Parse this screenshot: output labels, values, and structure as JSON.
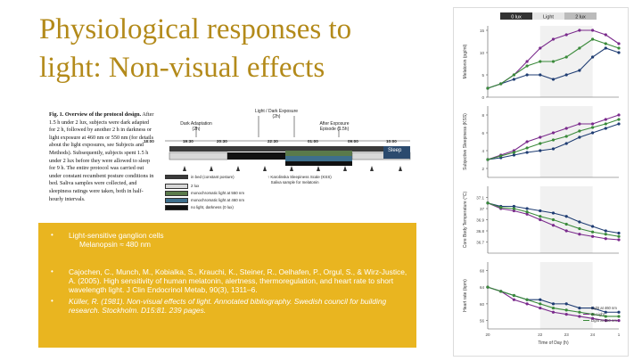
{
  "slide": {
    "title_line1": "Physiological responses to",
    "title_line2": "light: Non-visual effects"
  },
  "figure": {
    "caption_bold": "Fig. 1. Overview of the protocol design.",
    "caption_rest": "After 1.5 h under 2 lux, subjects were dark adapted for 2 h, followed by another 2 h in darkness or light exposure at 460 nm or 550 nm (for details about the light exposures, see Subjects and Methods). Subsequently, subjects spent 1.5 h under 2 lux before they were allowed to sleep for 9 h. The entire protocol was carried out under constant recumbent posture conditions in bed. Saliva samples were collected, and sleepiness ratings were taken, both in half-hourly intervals.",
    "phase_light_dark": "Light / Dark Exposure",
    "phase_light_dark_dur": "(2h)",
    "phase_dark_adapt": "Dark Adaptation",
    "phase_dark_adapt_dur": "(2h)",
    "phase_after": "After Exposure",
    "phase_after_dur": "Episode (1.5h)",
    "times": [
      "18:00",
      "19:30",
      "20:30",
      "22:30",
      "01:00",
      "09:00",
      "10:00"
    ],
    "sleep_label": "Sleep",
    "legend": [
      "in bed (constant posture)",
      "2 lux",
      "monochromatic light at 550 nm",
      "monochromatic light at 460 nm",
      "no light, darkness (0 lux)"
    ],
    "kss_note_1": "Karolinska Sleepiness Scale (KSS)",
    "kss_note_2": "Saliva sample for melatonin"
  },
  "bullets": {
    "b1_line1": "Light-sensitive ganglion cells",
    "b1_line2": "Melanopsin ≈ 480 nm",
    "ref1": "Cajochen, C., Munch, M., Kobialka, S., Krauchi, K., Steiner, R., Oelhafen, P., Orgul, S., & Wirz-Justice, A. (2005). High sensitivity of human melatonin, alertness, thermoregulation, and heart rate to short wavelength light. J Clin Endocrinol Metab, 90(3), 1311–6.",
    "ref2": "Küller, R. (1981). Non-visual effects of light. Annotated bibliography. Swedish council for building research. Stockholm. D15:81. 239 pages."
  },
  "chart_header": [
    "0 lux",
    "Light",
    "2 lux"
  ],
  "chart_data": [
    {
      "type": "line",
      "ylabel": "Melatonin (pg/ml)",
      "ylim": [
        0,
        16
      ],
      "yticks": [
        0,
        5,
        10,
        15
      ],
      "x": [
        20,
        20.5,
        21,
        21.5,
        22,
        22.5,
        23,
        23.5,
        24,
        24.5,
        25
      ],
      "series": [
        {
          "values": [
            2,
            3,
            5,
            8,
            11,
            13,
            14,
            15,
            15,
            14,
            12
          ],
          "color": "#7a2a8c"
        },
        {
          "values": [
            2,
            3,
            4,
            5,
            5,
            4,
            5,
            6,
            9,
            11,
            10
          ],
          "color": "#1f3d73"
        },
        {
          "values": [
            2,
            3,
            5,
            7,
            8,
            8,
            9,
            11,
            13,
            12,
            11
          ],
          "color": "#3a8a3a"
        }
      ]
    },
    {
      "type": "line",
      "ylabel": "Subjective Sleepiness (KSS)",
      "ylim": [
        1,
        9
      ],
      "yticks": [
        2,
        4,
        6,
        8
      ],
      "x": [
        20,
        20.5,
        21,
        21.5,
        22,
        22.5,
        23,
        23.5,
        24,
        24.5,
        25
      ],
      "series": [
        {
          "values": [
            3,
            3.5,
            4,
            5,
            5.5,
            6,
            6.5,
            7,
            7,
            7.5,
            8
          ],
          "color": "#7a2a8c"
        },
        {
          "values": [
            3,
            3.2,
            3.5,
            3.8,
            4,
            4.2,
            4.8,
            5.5,
            6,
            6.5,
            7
          ],
          "color": "#1f3d73"
        },
        {
          "values": [
            3,
            3.4,
            3.8,
            4.3,
            4.8,
            5.2,
            5.6,
            6.2,
            6.6,
            7,
            7.5
          ],
          "color": "#3a8a3a"
        }
      ]
    },
    {
      "type": "line",
      "ylabel": "Core Body Temperature (°C)",
      "ylim": [
        36.6,
        37.2
      ],
      "yticks": [
        36.7,
        36.8,
        36.9,
        37.0,
        37.1
      ],
      "x": [
        20,
        20.5,
        21,
        21.5,
        22,
        22.5,
        23,
        23.5,
        24,
        24.5,
        25
      ],
      "series": [
        {
          "values": [
            37.05,
            37.0,
            36.98,
            36.95,
            36.9,
            36.85,
            36.8,
            36.77,
            36.75,
            36.73,
            36.72
          ],
          "color": "#7a2a8c"
        },
        {
          "values": [
            37.05,
            37.02,
            37.02,
            37.0,
            36.98,
            36.96,
            36.93,
            36.88,
            36.84,
            36.8,
            36.78
          ],
          "color": "#1f3d73"
        },
        {
          "values": [
            37.05,
            37.01,
            37.0,
            36.97,
            36.93,
            36.9,
            36.86,
            36.82,
            36.79,
            36.77,
            36.75
          ],
          "color": "#3a8a3a"
        }
      ]
    },
    {
      "type": "line",
      "ylabel": "Heart rate (bpm)",
      "xlabel": "Time of Day (h)",
      "ylim": [
        54,
        70
      ],
      "yticks": [
        56,
        60,
        64,
        68
      ],
      "xticks": [
        "20",
        "22",
        "23",
        "24",
        "1"
      ],
      "x": [
        20,
        20.5,
        21,
        21.5,
        22,
        22.5,
        23,
        23.5,
        24,
        24.5,
        25
      ],
      "legend": [
        "Light at 460 nm",
        "no Light",
        "Light at 550 nm"
      ],
      "series": [
        {
          "name": "Light at 460 nm",
          "values": [
            64,
            63,
            62,
            61,
            61,
            60,
            60,
            59,
            59,
            58,
            58
          ],
          "color": "#1f3d73"
        },
        {
          "name": "no Light",
          "values": [
            64,
            63,
            61,
            60,
            59,
            58,
            57.5,
            57,
            56.5,
            56,
            56
          ],
          "color": "#7a2a8c"
        },
        {
          "name": "Light at 550 nm",
          "values": [
            64,
            63,
            62,
            61,
            60,
            59,
            58.5,
            58,
            57.5,
            57,
            57
          ],
          "color": "#3a8a3a"
        }
      ]
    }
  ]
}
